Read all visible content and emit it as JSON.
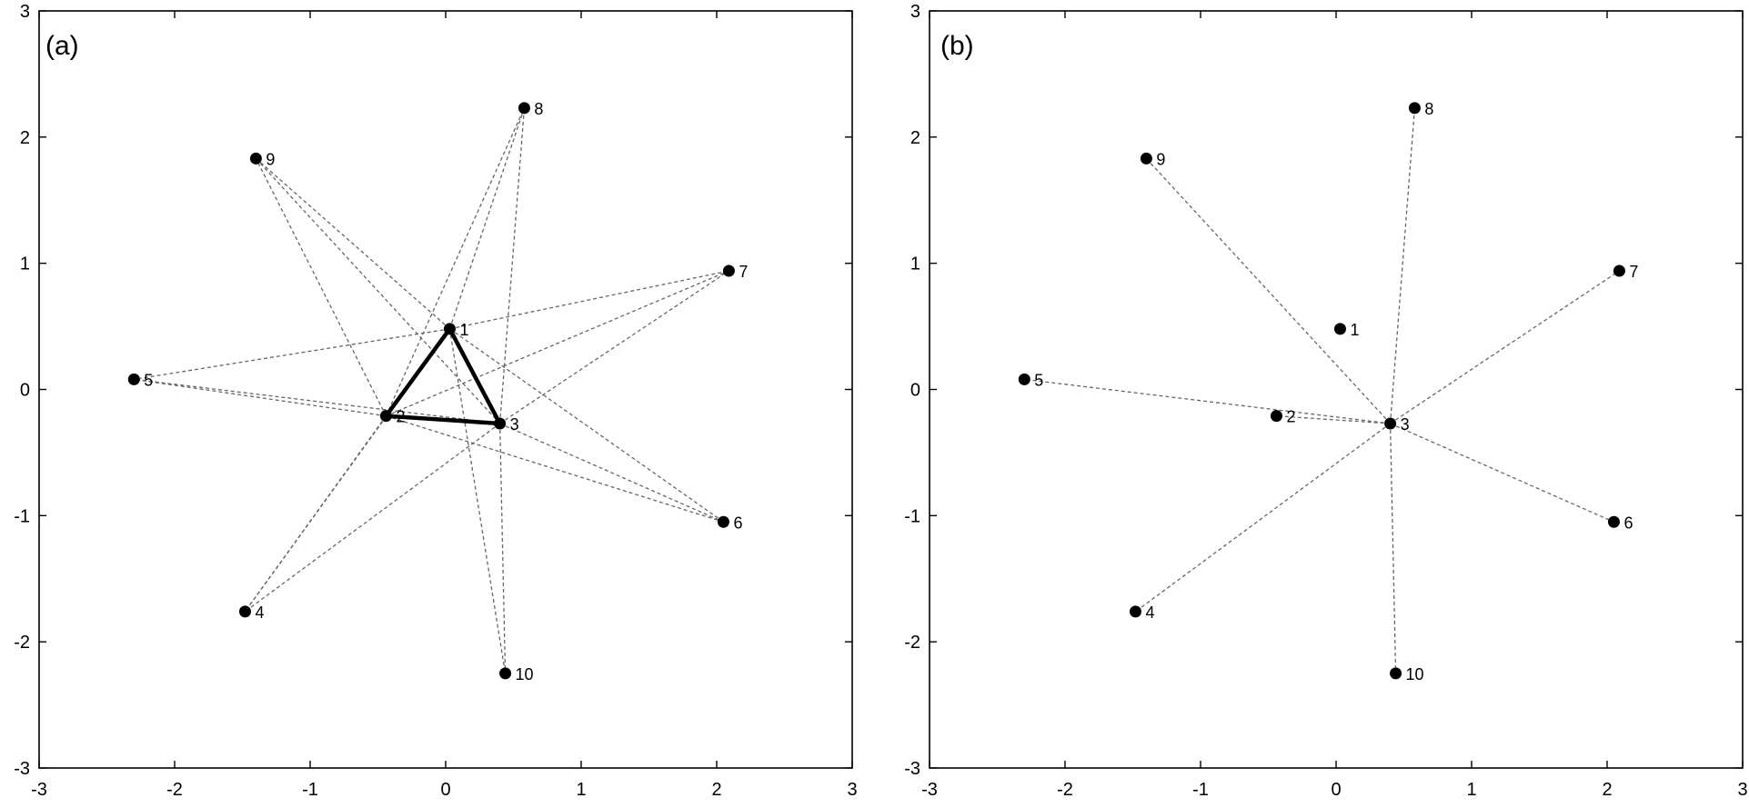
{
  "chart_data": [
    {
      "type": "scatter",
      "panel_label": "(a)",
      "title": "",
      "xlabel": "",
      "ylabel": "",
      "xlim": [
        -3,
        3
      ],
      "ylim": [
        -3,
        3
      ],
      "x_ticks": [
        "-3",
        "-2",
        "-1",
        "0",
        "1",
        "2",
        "3"
      ],
      "y_ticks": [
        "3",
        "2",
        "1",
        "0",
        "-1",
        "-2",
        "-3"
      ],
      "grid": false,
      "points": [
        {
          "label": "1",
          "x": 0.03,
          "y": 0.48
        },
        {
          "label": "2",
          "x": -0.44,
          "y": -0.21
        },
        {
          "label": "3",
          "x": 0.4,
          "y": -0.27
        },
        {
          "label": "4",
          "x": -1.48,
          "y": -1.76
        },
        {
          "label": "5",
          "x": -2.3,
          "y": 0.08
        },
        {
          "label": "6",
          "x": 2.05,
          "y": -1.05
        },
        {
          "label": "7",
          "x": 2.09,
          "y": 0.94
        },
        {
          "label": "8",
          "x": 0.58,
          "y": 2.23
        },
        {
          "label": "9",
          "x": -1.4,
          "y": 1.83
        },
        {
          "label": "10",
          "x": 0.44,
          "y": -2.25
        }
      ],
      "edges": [
        {
          "from": "1",
          "to": "2",
          "style": "solid"
        },
        {
          "from": "2",
          "to": "3",
          "style": "solid"
        },
        {
          "from": "3",
          "to": "1",
          "style": "solid"
        },
        {
          "from": "1",
          "to": "5",
          "style": "dashed"
        },
        {
          "from": "1",
          "to": "6",
          "style": "dashed"
        },
        {
          "from": "1",
          "to": "9",
          "style": "dashed"
        },
        {
          "from": "1",
          "to": "10",
          "style": "dashed"
        },
        {
          "from": "2",
          "to": "5",
          "style": "dashed"
        },
        {
          "from": "2",
          "to": "6",
          "style": "dashed"
        },
        {
          "from": "2",
          "to": "7",
          "style": "dashed"
        },
        {
          "from": "2",
          "to": "8",
          "style": "dashed"
        },
        {
          "from": "2",
          "to": "9",
          "style": "dashed"
        },
        {
          "from": "2",
          "to": "4",
          "style": "dashed"
        },
        {
          "from": "3",
          "to": "5",
          "style": "dashed"
        },
        {
          "from": "3",
          "to": "6",
          "style": "dashed"
        },
        {
          "from": "3",
          "to": "7",
          "style": "dashed"
        },
        {
          "from": "3",
          "to": "8",
          "style": "dashed"
        },
        {
          "from": "3",
          "to": "9",
          "style": "dashed"
        },
        {
          "from": "3",
          "to": "10",
          "style": "dashed"
        },
        {
          "from": "3",
          "to": "4",
          "style": "dashed"
        },
        {
          "from": "1",
          "to": "7",
          "style": "dashed"
        },
        {
          "from": "1",
          "to": "8",
          "style": "dashed"
        },
        {
          "from": "1",
          "to": "4",
          "style": "dashed"
        }
      ]
    },
    {
      "type": "scatter",
      "panel_label": "(b)",
      "title": "",
      "xlabel": "",
      "ylabel": "",
      "xlim": [
        -3,
        3
      ],
      "ylim": [
        -3,
        3
      ],
      "x_ticks": [
        "-3",
        "-2",
        "-1",
        "0",
        "1",
        "2",
        "3"
      ],
      "y_ticks": [
        "3",
        "2",
        "1",
        "0",
        "-1",
        "-2",
        "-3"
      ],
      "grid": false,
      "points": [
        {
          "label": "1",
          "x": 0.03,
          "y": 0.48
        },
        {
          "label": "2",
          "x": -0.44,
          "y": -0.21
        },
        {
          "label": "3",
          "x": 0.4,
          "y": -0.27
        },
        {
          "label": "4",
          "x": -1.48,
          "y": -1.76
        },
        {
          "label": "5",
          "x": -2.3,
          "y": 0.08
        },
        {
          "label": "6",
          "x": 2.05,
          "y": -1.05
        },
        {
          "label": "7",
          "x": 2.09,
          "y": 0.94
        },
        {
          "label": "8",
          "x": 0.58,
          "y": 2.23
        },
        {
          "label": "9",
          "x": -1.4,
          "y": 1.83
        },
        {
          "label": "10",
          "x": 0.44,
          "y": -2.25
        }
      ],
      "edges": [
        {
          "from": "3",
          "to": "2",
          "style": "dashed"
        },
        {
          "from": "3",
          "to": "4",
          "style": "dashed"
        },
        {
          "from": "3",
          "to": "5",
          "style": "dashed"
        },
        {
          "from": "3",
          "to": "6",
          "style": "dashed"
        },
        {
          "from": "3",
          "to": "7",
          "style": "dashed"
        },
        {
          "from": "3",
          "to": "8",
          "style": "dashed"
        },
        {
          "from": "3",
          "to": "9",
          "style": "dashed"
        },
        {
          "from": "3",
          "to": "10",
          "style": "dashed"
        }
      ]
    }
  ]
}
